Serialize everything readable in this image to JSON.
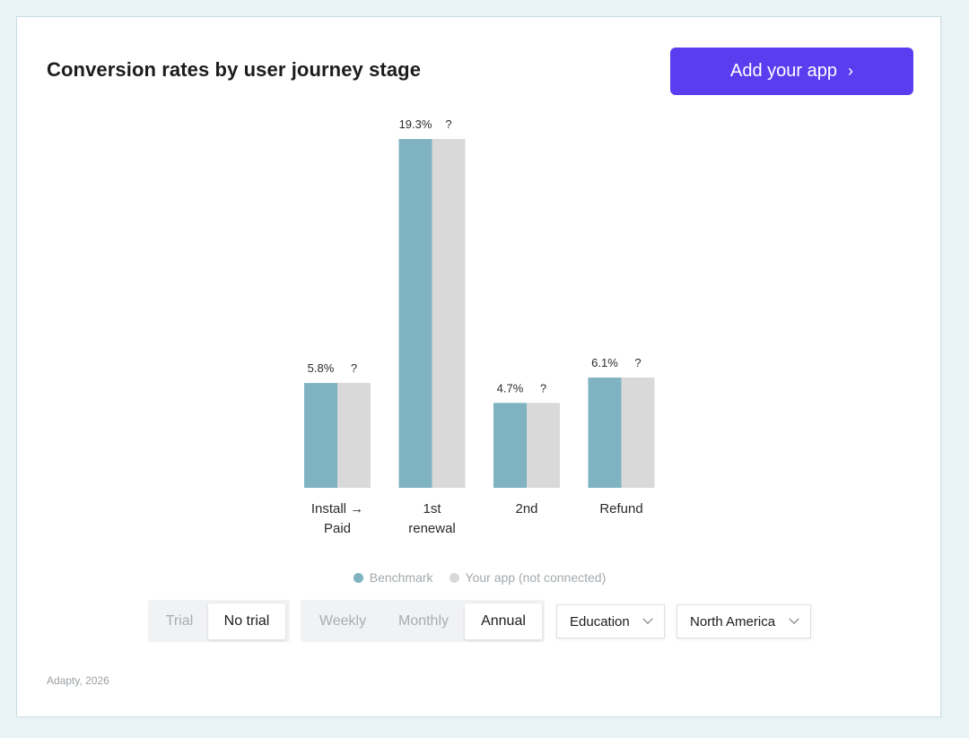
{
  "header": {
    "title": "Conversion rates by user journey stage",
    "add_button_label": "Add your app",
    "add_button_chevron": "›"
  },
  "colors": {
    "benchmark": "#7fb3c1",
    "your_app": "#d9d9d9",
    "accent": "#5b3df0"
  },
  "chart_data": {
    "type": "bar",
    "categories": [
      "Install →\nPaid",
      "1st\nrenewal",
      "2nd",
      "Refund"
    ],
    "series": [
      {
        "name": "Benchmark",
        "values": [
          5.8,
          19.3,
          4.7,
          6.1
        ],
        "labels": [
          "5.8%",
          "19.3%",
          "4.7%",
          "6.1%"
        ]
      },
      {
        "name": "Your app (not connected)",
        "values": [
          5.8,
          19.3,
          4.7,
          6.1
        ],
        "labels": [
          "?",
          "?",
          "?",
          "?"
        ]
      }
    ],
    "ylim": [
      0,
      19.3
    ],
    "grid": false,
    "legend": "bottom"
  },
  "legend": {
    "benchmark_label": "Benchmark",
    "your_app_label": "Your app (not connected)"
  },
  "filters": {
    "trial": {
      "options": [
        "Trial",
        "No trial"
      ],
      "selected": "No trial"
    },
    "period": {
      "options": [
        "Weekly",
        "Monthly",
        "Annual"
      ],
      "selected": "Annual"
    },
    "category": {
      "value": "Education"
    },
    "region": {
      "value": "North America"
    }
  },
  "footer": {
    "text": "Adapty, 2026"
  }
}
